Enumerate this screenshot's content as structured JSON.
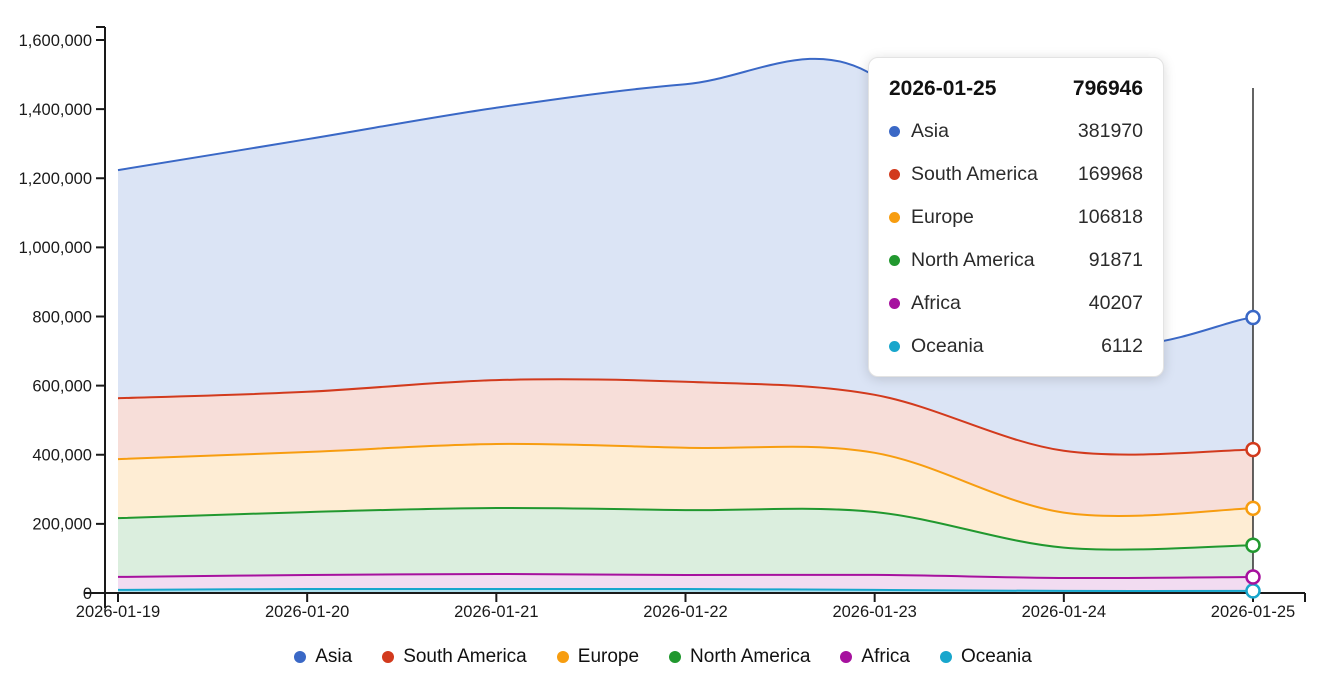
{
  "chart_data": {
    "type": "area",
    "stacked": true,
    "title": "",
    "xlabel": "",
    "ylabel": "",
    "x": [
      "2026-01-19",
      "2026-01-20",
      "2026-01-21",
      "2026-01-22",
      "2026-01-23",
      "2026-01-24",
      "2026-01-25"
    ],
    "series": [
      {
        "name": "Asia",
        "color": "#3a68c6",
        "fill": "rgba(58,104,198,0.18)",
        "values": [
          660000,
          731000,
          788000,
          861000,
          922000,
          350000,
          381970
        ]
      },
      {
        "name": "South America",
        "color": "#d23a1d",
        "fill": "rgba(210,58,29,0.17)",
        "values": [
          176000,
          174000,
          185000,
          191000,
          168000,
          179000,
          169968
        ]
      },
      {
        "name": "Europe",
        "color": "#f79d10",
        "fill": "rgba(247,157,16,0.18)",
        "values": [
          171000,
          174000,
          185000,
          180000,
          171000,
          101000,
          106818
        ]
      },
      {
        "name": "North America",
        "color": "#21982f",
        "fill": "rgba(33,152,47,0.16)",
        "values": [
          170000,
          182000,
          191000,
          188000,
          182000,
          88000,
          91871
        ]
      },
      {
        "name": "Africa",
        "color": "#a6119e",
        "fill": "rgba(166,17,158,0.15)",
        "values": [
          37500,
          40500,
          43500,
          40500,
          43500,
          37500,
          40207
        ]
      },
      {
        "name": "Oceania",
        "color": "#18a6cc",
        "fill": "rgba(24,166,204,0.35)",
        "values": [
          9000,
          11500,
          11500,
          11500,
          9000,
          6000,
          6112
        ]
      }
    ],
    "stack_order_bottom_to_top": [
      "Oceania",
      "Africa",
      "North America",
      "Europe",
      "South America",
      "Asia"
    ],
    "ylim": [
      0,
      1600000
    ],
    "ytick_step": 200000,
    "ytick_labels": [
      "0",
      "200,000",
      "400,000",
      "600,000",
      "800,000",
      "1,000,000",
      "1,200,000",
      "1,400,000",
      "1,600,000"
    ],
    "grid": false,
    "legend_position": "bottom",
    "hovered_x": "2026-01-25"
  },
  "tooltip": {
    "date": "2026-01-25",
    "total": "796946",
    "rows": [
      {
        "name": "Asia",
        "value": "381970",
        "color": "#3a68c6"
      },
      {
        "name": "South America",
        "value": "169968",
        "color": "#d23a1d"
      },
      {
        "name": "Europe",
        "value": "106818",
        "color": "#f79d10"
      },
      {
        "name": "North America",
        "value": "91871",
        "color": "#21982f"
      },
      {
        "name": "Africa",
        "value": "40207",
        "color": "#a6119e"
      },
      {
        "name": "Oceania",
        "value": "6112",
        "color": "#18a6cc"
      }
    ]
  },
  "legend": {
    "items": [
      {
        "label": "Asia",
        "color": "#3a68c6"
      },
      {
        "label": "South America",
        "color": "#d23a1d"
      },
      {
        "label": "Europe",
        "color": "#f79d10"
      },
      {
        "label": "North America",
        "color": "#21982f"
      },
      {
        "label": "Africa",
        "color": "#a6119e"
      },
      {
        "label": "Oceania",
        "color": "#18a6cc"
      }
    ]
  }
}
